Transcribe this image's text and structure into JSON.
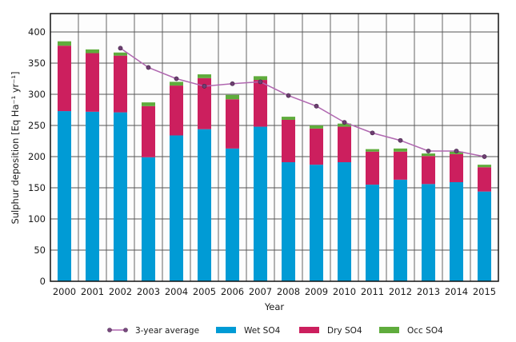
{
  "chart_data": {
    "type": "bar",
    "stacked": true,
    "title": "",
    "xlabel": "Year",
    "ylabel": "Sulphur deposition [Eq Ha⁻¹ yr⁻¹]",
    "ylim": [
      0,
      425
    ],
    "yticks": [
      0,
      50,
      100,
      150,
      200,
      250,
      300,
      350,
      400
    ],
    "grid": true,
    "legend_position": "bottom",
    "categories": [
      "2000",
      "2001",
      "2002",
      "2003",
      "2004",
      "2005",
      "2006",
      "2007",
      "2008",
      "2009",
      "2010",
      "2011",
      "2012",
      "2013",
      "2014",
      "2015"
    ],
    "series": [
      {
        "name": "Wet SO4",
        "kind": "bar",
        "color": "#009bd5",
        "values": [
          273,
          272,
          271,
          199,
          234,
          244,
          213,
          248,
          191,
          187,
          191,
          155,
          163,
          156,
          159,
          144
        ]
      },
      {
        "name": "Dry SO4",
        "kind": "bar",
        "color": "#cc1f5e",
        "values": [
          105,
          94,
          91,
          82,
          80,
          82,
          79,
          75,
          68,
          58,
          57,
          53,
          45,
          45,
          45,
          39
        ]
      },
      {
        "name": "Occ SO4",
        "kind": "bar",
        "color": "#5fac3c",
        "values": [
          7,
          6,
          5,
          6,
          6,
          6,
          7,
          6,
          5,
          5,
          5,
          4,
          5,
          4,
          4,
          4
        ]
      },
      {
        "name": "3-year average",
        "kind": "line",
        "color": "#b067b0",
        "marker_color": "#6e3f72",
        "values": [
          null,
          null,
          374,
          343,
          325,
          313,
          317,
          320,
          298,
          281,
          255,
          238,
          226,
          209,
          209,
          200
        ]
      }
    ],
    "legend": [
      "3-year average",
      "Wet SO4",
      "Dry SO4",
      "Occ SO4"
    ]
  }
}
